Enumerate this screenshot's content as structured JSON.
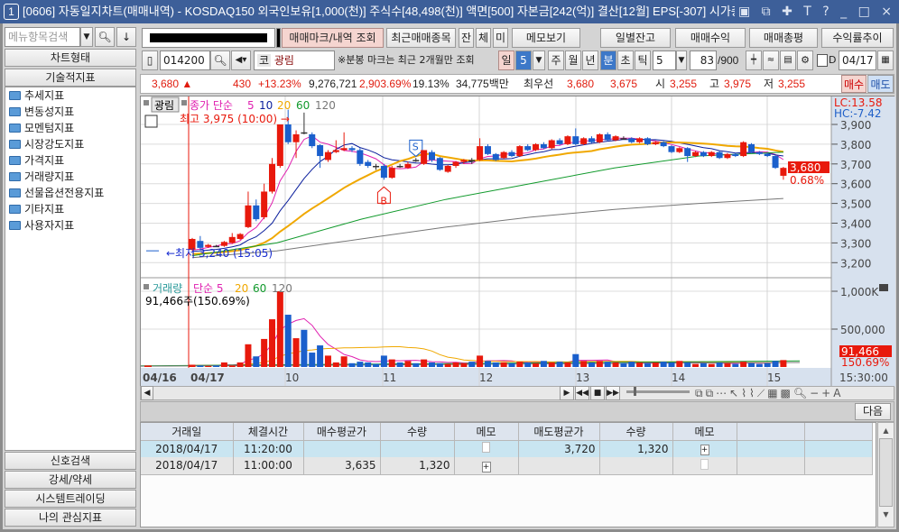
{
  "title": {
    "num": "1",
    "text": "[0606] 자동일지차트(매매내역) - KOSDAQ150 외국인보유[1,000(천)] 주식수[48,498(천)] 액면[500] 자본금[242(억)] 결산[12월] EPS[-307] 시가총",
    "icons": "▣ ⧉ ✚ T ? _ □ ×"
  },
  "sidebar": {
    "search_placeholder": "메뉴항목검색",
    "buttons_top": [
      "차트형태",
      "기술적지표"
    ],
    "tree": [
      "추세지표",
      "변동성지표",
      "모멘텀지표",
      "시장강도지표",
      "가격지표",
      "거래량지표",
      "선물옵션전용지표",
      "기타지표",
      "사용자지표"
    ],
    "buttons_bottom": [
      "신호검색",
      "강세/약세",
      "시스템트레이딩",
      "나의 관심지표"
    ]
  },
  "toolbar1": {
    "trade_mark": "매매마크/내역 조회",
    "recent": "최근매매종목",
    "jan": "잔",
    "che": "체",
    "mi": "미",
    "memo": "메모보기",
    "daily": "일별잔고",
    "profit": "매매수익",
    "review": "매매총평",
    "return": "수익률추이"
  },
  "toolbar2": {
    "code": "014200",
    "market": "코",
    "name": "광림",
    "note": "※분봉 마크는 최근 2개월만 조회",
    "periods": [
      "일",
      "5",
      "주",
      "월",
      "년",
      "분",
      "초",
      "틱"
    ],
    "active_period": "분",
    "interval": "5",
    "count": "83",
    "count_max": "/900",
    "d_label": "D",
    "date": "04/17"
  },
  "quote": {
    "price": "3,680 ▲",
    "change": "430",
    "rate": "+13.23%",
    "volume": "9,276,721",
    "vol_rate": "2,903.69%",
    "turnover": "19.13%",
    "amount": "34,775백만",
    "best_label": "최우선",
    "ask": "3,680",
    "bid": "3,675",
    "open_label": "시",
    "open": "3,255",
    "high_label": "고",
    "high": "3,975",
    "low_label": "저",
    "low": "3,255",
    "buy": "매수",
    "sell": "매도"
  },
  "chart": {
    "name_btn": "광림",
    "ma_label": "종가 단순",
    "ma_periods": [
      "5",
      "10",
      "20",
      "60",
      "120"
    ],
    "high_note": "최고 3,975 (10:00) →",
    "low_note": "←최저 3,240 (15:05)",
    "lc": "LC:13.58",
    "hc": "HC:-7.42",
    "price_ticks": [
      "3,900",
      "3,800",
      "3,700",
      "3,600",
      "3,500",
      "3,400",
      "3,300",
      "3,200"
    ],
    "cur_price": "3,680",
    "cur_rate": "0.68%",
    "buy_mark": "B",
    "sell_mark": "S",
    "vol_label": "거래량",
    "vol_ma_label": "단순 5",
    "vol_ma_periods": [
      "20",
      "60",
      "120"
    ],
    "vol_note": "91,466주(150.69%)",
    "vol_ticks": [
      "1,000K",
      "500,000"
    ],
    "cur_vol": "91,466",
    "cur_vol_rate": "150.69%",
    "time_labels": [
      "04/16",
      "04/17",
      "10",
      "11",
      "12",
      "13",
      "14",
      "15"
    ],
    "time_end": "15:30:00",
    "colors": {
      "up": "#e8190c",
      "down": "#1a5fcc",
      "ma5": "#e020b0",
      "ma10": "#0a1e9c",
      "ma20": "#f0a800",
      "ma60": "#119a2c",
      "ma120": "#777777"
    },
    "prev_bar": [
      3260,
      3265,
      3255,
      3260
    ],
    "ohlc": [
      [
        3265,
        3325,
        3260,
        3320
      ],
      [
        3310,
        3335,
        3270,
        3275
      ],
      [
        3280,
        3295,
        3275,
        3290
      ],
      [
        3285,
        3290,
        3280,
        3285
      ],
      [
        3285,
        3310,
        3280,
        3305
      ],
      [
        3300,
        3350,
        3295,
        3330
      ],
      [
        3320,
        3350,
        3315,
        3345
      ],
      [
        3380,
        3560,
        3375,
        3490
      ],
      [
        3490,
        3520,
        3410,
        3420
      ],
      [
        3430,
        3600,
        3420,
        3560
      ],
      [
        3560,
        3730,
        3550,
        3700
      ],
      [
        3690,
        3900,
        3680,
        3900
      ],
      [
        3900,
        3975,
        3800,
        3810
      ],
      [
        3810,
        3870,
        3730,
        3850
      ],
      [
        3860,
        3960,
        3850,
        3860
      ],
      [
        3850,
        3860,
        3780,
        3790
      ],
      [
        3795,
        3800,
        3680,
        3740
      ],
      [
        3720,
        3770,
        3710,
        3760
      ],
      [
        3760,
        3820,
        3755,
        3770
      ],
      [
        3770,
        3860,
        3765,
        3780
      ],
      [
        3780,
        3790,
        3760,
        3770
      ],
      [
        3770,
        3780,
        3690,
        3700
      ],
      [
        3710,
        3720,
        3680,
        3690
      ],
      [
        3690,
        3700,
        3670,
        3690
      ],
      [
        3690,
        3700,
        3620,
        3630
      ],
      [
        3630,
        3690,
        3625,
        3680
      ],
      [
        3690,
        3700,
        3680,
        3690
      ],
      [
        3680,
        3710,
        3675,
        3700
      ],
      [
        3720,
        3730,
        3710,
        3720
      ],
      [
        3700,
        3770,
        3695,
        3770
      ],
      [
        3760,
        3770,
        3710,
        3720
      ],
      [
        3730,
        3735,
        3665,
        3670
      ],
      [
        3660,
        3695,
        3655,
        3690
      ],
      [
        3690,
        3715,
        3680,
        3710
      ],
      [
        3710,
        3725,
        3700,
        3720
      ],
      [
        3720,
        3730,
        3700,
        3720
      ],
      [
        3720,
        3830,
        3715,
        3790
      ],
      [
        3790,
        3800,
        3745,
        3750
      ],
      [
        3750,
        3755,
        3715,
        3720
      ],
      [
        3730,
        3765,
        3725,
        3760
      ],
      [
        3760,
        3770,
        3735,
        3740
      ],
      [
        3740,
        3795,
        3735,
        3790
      ],
      [
        3790,
        3800,
        3765,
        3770
      ],
      [
        3770,
        3805,
        3765,
        3800
      ],
      [
        3800,
        3810,
        3775,
        3780
      ],
      [
        3780,
        3825,
        3775,
        3820
      ],
      [
        3820,
        3830,
        3795,
        3800
      ],
      [
        3800,
        3845,
        3795,
        3840
      ],
      [
        3840,
        3880,
        3795,
        3800
      ],
      [
        3800,
        3835,
        3795,
        3830
      ],
      [
        3830,
        3840,
        3805,
        3810
      ],
      [
        3810,
        3855,
        3805,
        3850
      ],
      [
        3850,
        3860,
        3815,
        3820
      ],
      [
        3820,
        3845,
        3815,
        3840
      ],
      [
        3830,
        3840,
        3825,
        3830
      ],
      [
        3830,
        3835,
        3805,
        3810
      ],
      [
        3810,
        3835,
        3805,
        3830
      ],
      [
        3830,
        3835,
        3795,
        3800
      ],
      [
        3800,
        3815,
        3795,
        3810
      ],
      [
        3810,
        3815,
        3785,
        3790
      ],
      [
        3790,
        3795,
        3755,
        3760
      ],
      [
        3760,
        3785,
        3755,
        3780
      ],
      [
        3780,
        3785,
        3710,
        3740
      ],
      [
        3740,
        3765,
        3735,
        3760
      ],
      [
        3760,
        3765,
        3735,
        3740
      ],
      [
        3740,
        3765,
        3735,
        3760
      ],
      [
        3760,
        3765,
        3725,
        3730
      ],
      [
        3730,
        3755,
        3725,
        3750
      ],
      [
        3750,
        3755,
        3735,
        3740
      ],
      [
        3740,
        3815,
        3735,
        3810
      ],
      [
        3800,
        3805,
        3755,
        3760
      ],
      [
        3760,
        3765,
        3745,
        3750
      ],
      [
        3750,
        3755,
        3735,
        3740
      ],
      [
        3740,
        3745,
        3675,
        3680
      ],
      [
        3640,
        3685,
        3620,
        3680
      ]
    ],
    "ma60": [
      3235,
      3300,
      3420,
      3520,
      3600,
      3680,
      3740,
      3760
    ],
    "ma120": [
      3225,
      3260,
      3320,
      3380,
      3430,
      3470,
      3500,
      3525
    ],
    "volume_k": [
      30,
      20,
      15,
      20,
      60,
      20,
      60,
      300,
      140,
      370,
      630,
      1000,
      690,
      380,
      490,
      190,
      285,
      150,
      60,
      140,
      50,
      70,
      60,
      40,
      150,
      100,
      60,
      80,
      50,
      100,
      60,
      50,
      40,
      60,
      50,
      70,
      150,
      80,
      60,
      60,
      50,
      70,
      60,
      50,
      80,
      60,
      70,
      60,
      170,
      80,
      60,
      80,
      70,
      60,
      50,
      70,
      60,
      50,
      60,
      70,
      60,
      80,
      60,
      40,
      50,
      40,
      60,
      50,
      40,
      70,
      50,
      40,
      50,
      80,
      91
    ],
    "prev_volume_k": 20
  },
  "scroll": {
    "next": "다음"
  },
  "table": {
    "headers": [
      "거래일",
      "체결시간",
      "매수평균가",
      "수량",
      "메모",
      "매도평균가",
      "수량",
      "메모",
      "",
      ""
    ],
    "rows": [
      [
        "2018/04/17",
        "11:20:00",
        "",
        "",
        "memo-empty",
        "3,720",
        "1,320",
        "memo-add",
        "",
        ""
      ],
      [
        "2018/04/17",
        "11:00:00",
        "3,635",
        "1,320",
        "memo-add",
        "",
        "",
        "memo-empty",
        "",
        ""
      ]
    ]
  }
}
